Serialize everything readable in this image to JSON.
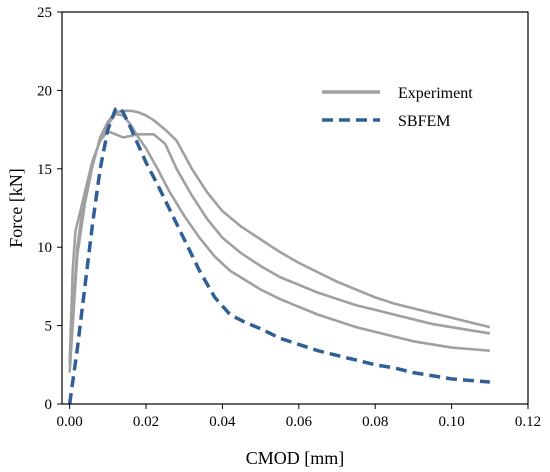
{
  "chart_data": {
    "type": "line",
    "title": "",
    "xlabel": "CMOD [mm]",
    "ylabel": "Force [kN]",
    "xlim": [
      -0.002,
      0.12
    ],
    "ylim": [
      0,
      25
    ],
    "xticks": [
      0.0,
      0.02,
      0.04,
      0.06,
      0.08,
      0.1,
      0.12
    ],
    "xtick_labels": [
      "0.00",
      "0.02",
      "0.04",
      "0.06",
      "0.08",
      "0.10",
      "0.12"
    ],
    "yticks": [
      0,
      5,
      10,
      15,
      20,
      25
    ],
    "ytick_labels": [
      "0",
      "5",
      "10",
      "15",
      "20",
      "25"
    ],
    "grid": false,
    "legend_position": "top-right",
    "colors": {
      "experiment": "#a0a0a0",
      "sbfem": "#2f5f96"
    },
    "legend": [
      {
        "label": "Experiment",
        "style": "solid",
        "color": "#a0a0a0"
      },
      {
        "label": "SBFEM",
        "style": "dashed",
        "color": "#2f5f96"
      }
    ],
    "series": [
      {
        "name": "Experiment",
        "style": "solid",
        "x": [
          0.0,
          0.0008,
          0.0015,
          0.002,
          0.004,
          0.006,
          0.008,
          0.01,
          0.012,
          0.014,
          0.016,
          0.018,
          0.02,
          0.022,
          0.025,
          0.028,
          0.032,
          0.036,
          0.04,
          0.045,
          0.05,
          0.055,
          0.06,
          0.065,
          0.07,
          0.075,
          0.08,
          0.085,
          0.09,
          0.095,
          0.1,
          0.105,
          0.11
        ],
        "y": [
          2.5,
          8.5,
          11.0,
          11.5,
          13.5,
          15.5,
          16.8,
          17.4,
          17.2,
          17.0,
          17.1,
          17.2,
          17.2,
          17.2,
          16.6,
          15.0,
          13.3,
          11.8,
          10.6,
          9.6,
          8.8,
          8.1,
          7.6,
          7.1,
          6.7,
          6.3,
          6.0,
          5.7,
          5.4,
          5.1,
          4.9,
          4.7,
          4.5
        ]
      },
      {
        "name": "Experiment",
        "style": "solid",
        "x": [
          0.0,
          0.002,
          0.004,
          0.006,
          0.008,
          0.01,
          0.012,
          0.014,
          0.016,
          0.018,
          0.02,
          0.022,
          0.025,
          0.028,
          0.032,
          0.036,
          0.04,
          0.045,
          0.05,
          0.055,
          0.06,
          0.065,
          0.07,
          0.075,
          0.08,
          0.085,
          0.09,
          0.095,
          0.1,
          0.105,
          0.11
        ],
        "y": [
          2.0,
          9.5,
          12.8,
          15.2,
          17.0,
          18.0,
          18.6,
          18.7,
          18.7,
          18.6,
          18.4,
          18.1,
          17.5,
          16.8,
          15.0,
          13.5,
          12.3,
          11.3,
          10.5,
          9.7,
          9.0,
          8.4,
          7.8,
          7.3,
          6.8,
          6.4,
          6.1,
          5.8,
          5.5,
          5.2,
          4.9
        ]
      },
      {
        "name": "Experiment",
        "style": "solid",
        "x": [
          0.0,
          0.002,
          0.004,
          0.006,
          0.008,
          0.01,
          0.012,
          0.014,
          0.016,
          0.018,
          0.02,
          0.023,
          0.026,
          0.03,
          0.034,
          0.038,
          0.042,
          0.046,
          0.05,
          0.055,
          0.06,
          0.065,
          0.07,
          0.075,
          0.08,
          0.085,
          0.09,
          0.095,
          0.1,
          0.105,
          0.11
        ],
        "y": [
          2.5,
          10.0,
          13.5,
          15.5,
          16.8,
          17.8,
          18.5,
          18.4,
          17.8,
          17.0,
          16.3,
          15.0,
          13.6,
          12.0,
          10.6,
          9.4,
          8.5,
          7.9,
          7.3,
          6.7,
          6.2,
          5.7,
          5.3,
          4.9,
          4.6,
          4.3,
          4.0,
          3.8,
          3.6,
          3.5,
          3.4
        ]
      },
      {
        "name": "SBFEM",
        "style": "dashed",
        "x": [
          0.0,
          0.002,
          0.004,
          0.006,
          0.008,
          0.01,
          0.012,
          0.013,
          0.014,
          0.016,
          0.018,
          0.02,
          0.023,
          0.026,
          0.03,
          0.034,
          0.038,
          0.042,
          0.046,
          0.05,
          0.055,
          0.06,
          0.065,
          0.07,
          0.075,
          0.08,
          0.085,
          0.09,
          0.095,
          0.1,
          0.105,
          0.11
        ],
        "y": [
          0.0,
          3.5,
          7.5,
          11.5,
          15.0,
          17.5,
          18.8,
          18.9,
          18.6,
          17.6,
          16.5,
          15.4,
          14.0,
          12.5,
          10.5,
          8.5,
          6.8,
          5.7,
          5.2,
          4.8,
          4.2,
          3.8,
          3.4,
          3.1,
          2.8,
          2.5,
          2.3,
          2.0,
          1.8,
          1.6,
          1.5,
          1.4
        ]
      }
    ]
  }
}
